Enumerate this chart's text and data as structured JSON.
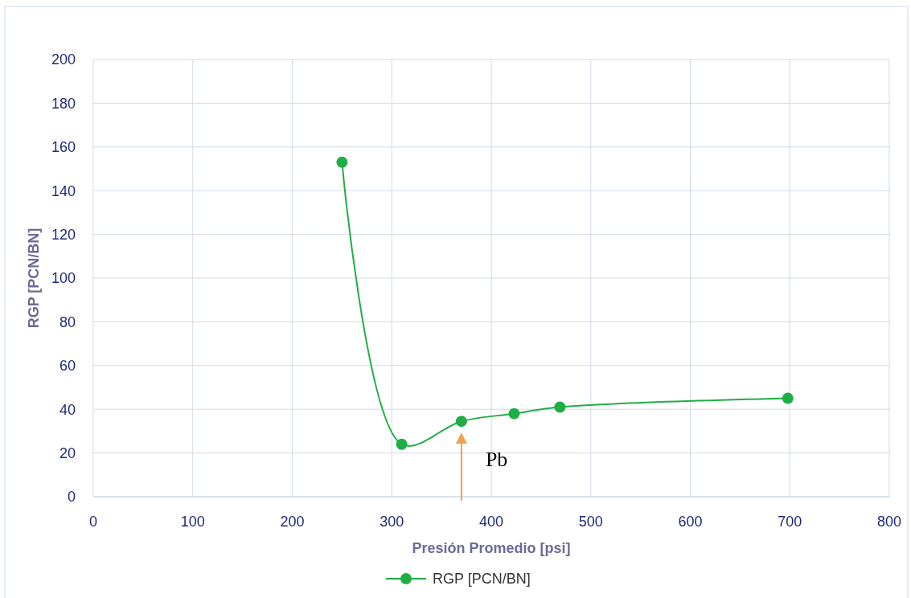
{
  "chart_data": {
    "type": "line",
    "xlabel": "Presión Promedio [psi]",
    "ylabel": "RGP [PCN/BN]",
    "x": [
      250,
      310,
      370,
      423,
      469,
      698
    ],
    "series": [
      {
        "name": "RGP [PCN/BN]",
        "color": "#1fae45",
        "values": [
          153,
          24,
          34.5,
          38,
          41,
          45
        ]
      }
    ],
    "xlim": [
      0,
      800
    ],
    "xticks": [
      0,
      100,
      200,
      300,
      400,
      500,
      600,
      700,
      800
    ],
    "ylim": [
      0,
      200
    ],
    "yticks": [
      0,
      20,
      40,
      60,
      80,
      100,
      120,
      140,
      160,
      180,
      200
    ],
    "grid": true,
    "legend": "bottom",
    "marker": "circle",
    "line_style": "solid",
    "ref_lines": [
      {
        "axis": "x",
        "value": 370,
        "label": "Pb",
        "color": "#f0a050"
      }
    ]
  }
}
